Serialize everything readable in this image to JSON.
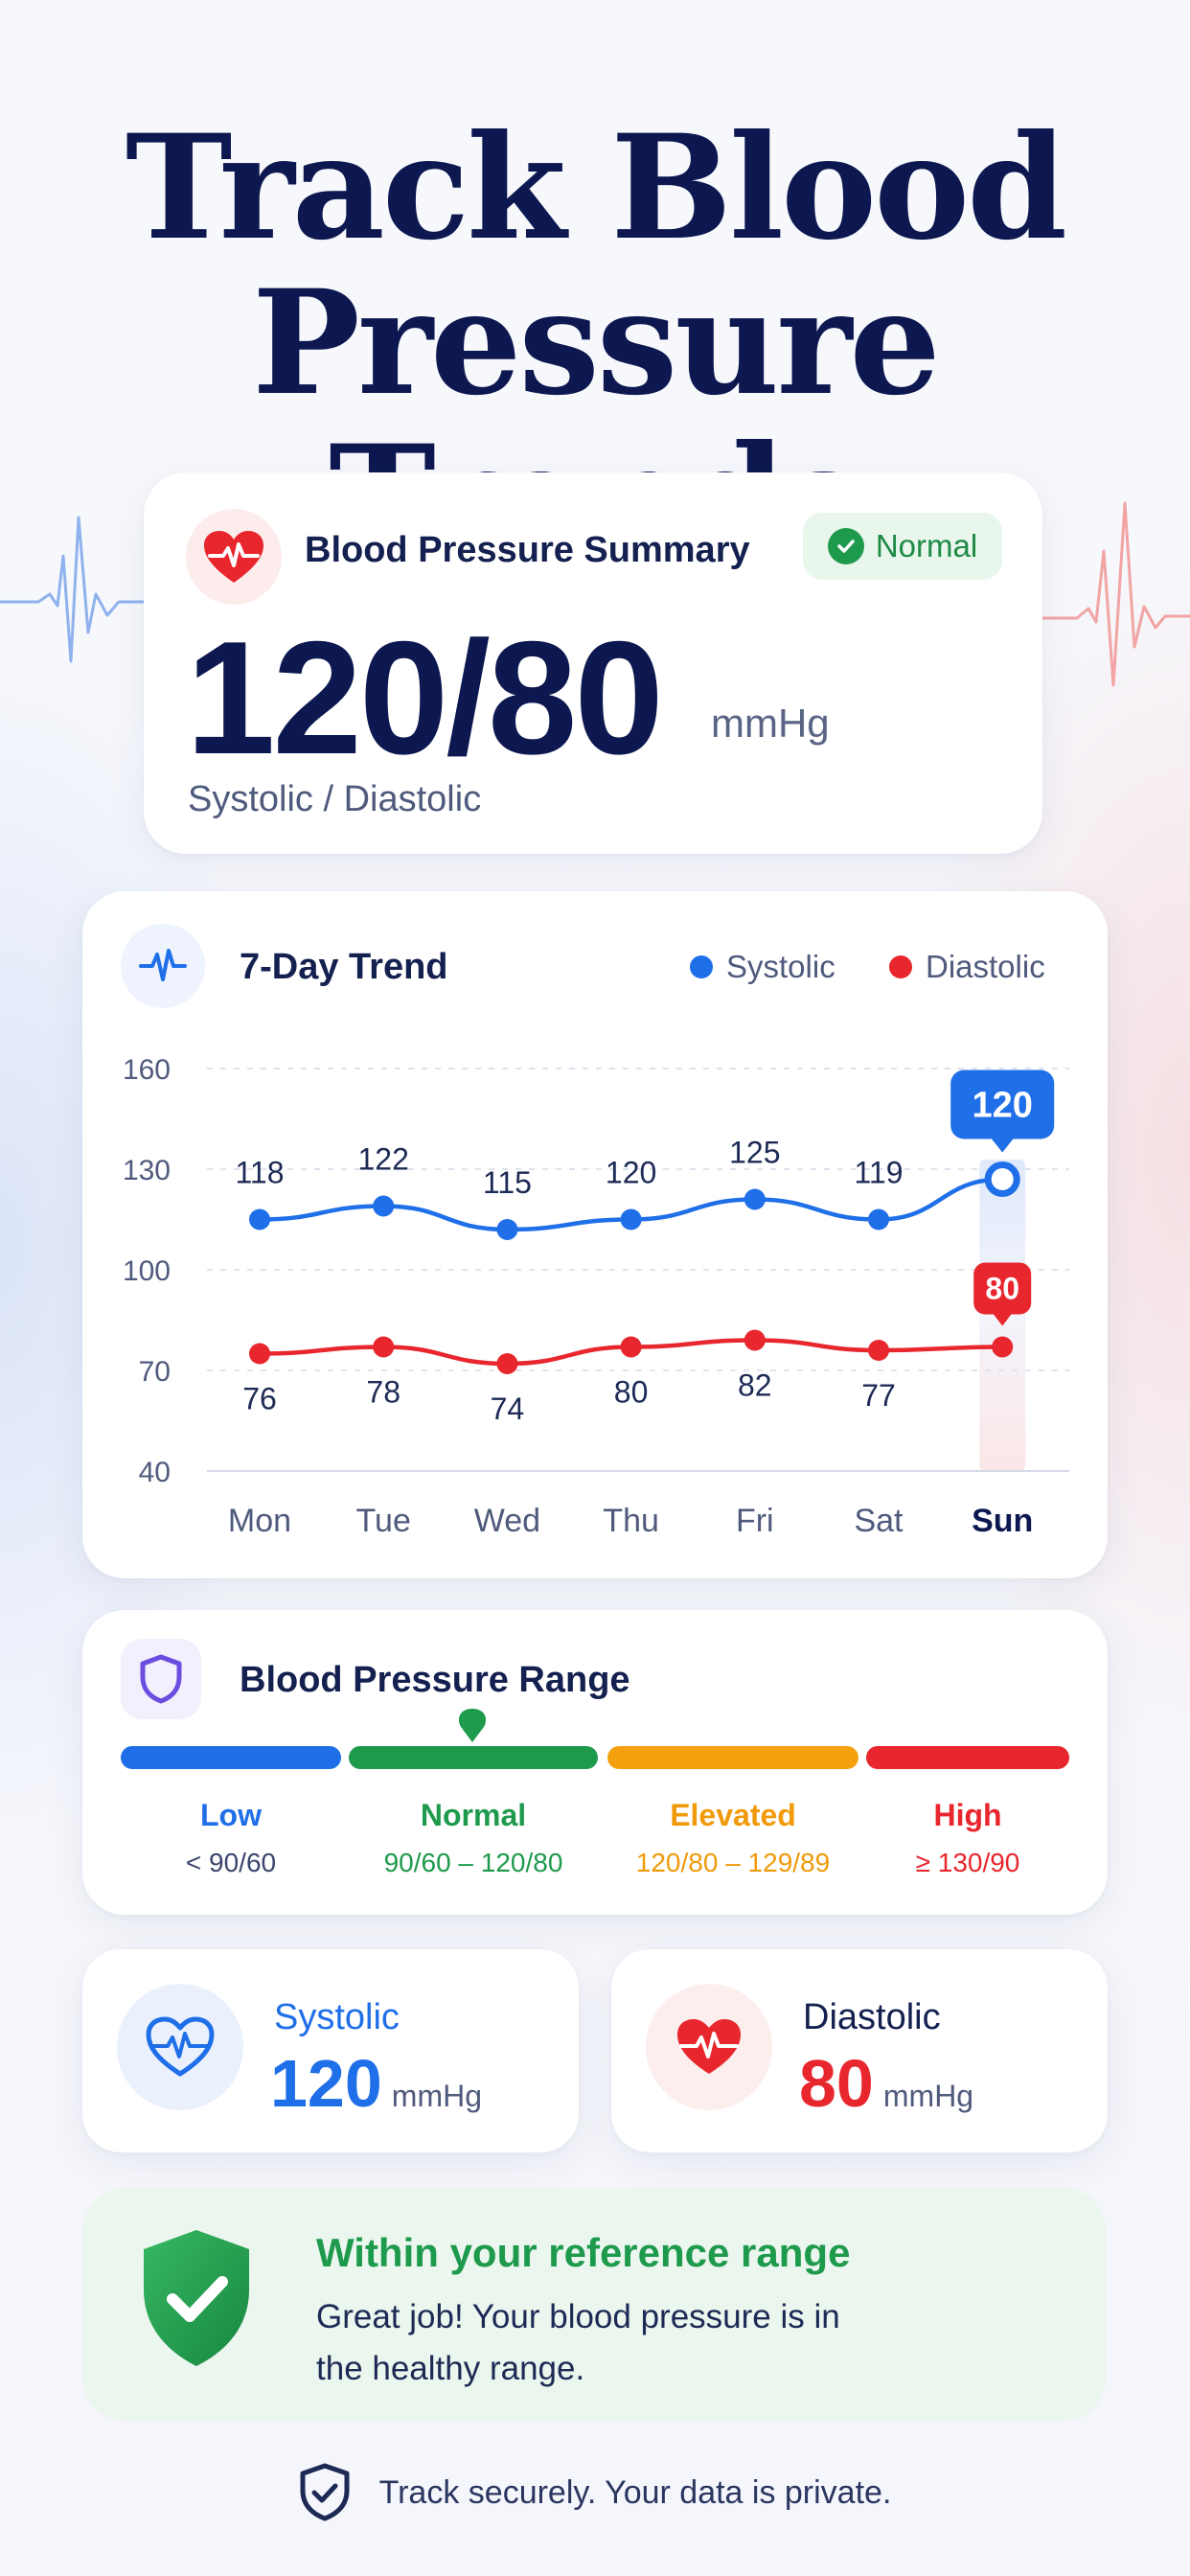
{
  "hero": {
    "title": "Track Blood Pressure Trends"
  },
  "summary": {
    "title": "Blood Pressure Summary",
    "status": "Normal",
    "reading": "120/80",
    "unit": "mmHg",
    "subtitle": "Systolic / Diastolic"
  },
  "trend": {
    "title": "7-Day Trend",
    "legend": {
      "systolic": "Systolic",
      "diastolic": "Diastolic"
    }
  },
  "chart_data": {
    "type": "line",
    "title": "7-Day Trend",
    "categories": [
      "Mon",
      "Tue",
      "Wed",
      "Thu",
      "Fri",
      "Sat",
      "Sun"
    ],
    "highlight_category": "Sun",
    "y_ticks": [
      160,
      130,
      100,
      70,
      40
    ],
    "ylim": [
      40,
      160
    ],
    "grid": "horizontal dashed",
    "legend_position": "top-right",
    "series": [
      {
        "name": "Systolic",
        "color": "#1f6fe8",
        "values": [
          118,
          122,
          115,
          120,
          125,
          119,
          120
        ]
      },
      {
        "name": "Diastolic",
        "color": "#e8262d",
        "values": [
          76,
          78,
          74,
          80,
          82,
          77,
          80
        ]
      }
    ],
    "plotted_positions": {
      "Systolic": [
        115,
        119,
        112,
        115,
        121,
        115,
        127
      ],
      "Diastolic": [
        75,
        77,
        72,
        77,
        79,
        76,
        77
      ]
    }
  },
  "range": {
    "title": "Blood Pressure Range",
    "marker_on": "Normal",
    "items": [
      {
        "label": "Low",
        "value": "< 90/60",
        "color": "#1f6fe8"
      },
      {
        "label": "Normal",
        "value": "90/60 – 120/80",
        "color": "#1e9a4d"
      },
      {
        "label": "Elevated",
        "value": "120/80 – 129/89",
        "color": "#f5a10f"
      },
      {
        "label": "High",
        "value": "≥ 130/90",
        "color": "#e8262d"
      }
    ]
  },
  "metrics": {
    "systolic": {
      "label": "Systolic",
      "value": "120",
      "unit": "mmHg",
      "color": "#1f6fe8",
      "icon": "heart-pulse-outline-icon"
    },
    "diastolic": {
      "label": "Diastolic",
      "value": "80",
      "unit": "mmHg",
      "color": "#e8262d",
      "icon": "heart-pulse-filled-icon"
    }
  },
  "reference": {
    "title": "Within your reference range",
    "text": "Great job! Your blood pressure is in the healthy range.",
    "icon": "shield-check-icon"
  },
  "footer": {
    "text": "Track securely. Your data is private.",
    "icon": "shield-check-outline-icon"
  }
}
